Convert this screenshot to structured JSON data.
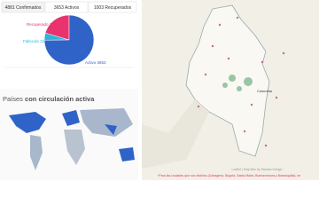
{
  "tabs": [
    "4881 Confirmados",
    "3653 Activos",
    "1003 Recuperados"
  ],
  "pie": {
    "slices": [
      {
        "label": "Recuperado",
        "value": 1003,
        "color": "#e8336f"
      },
      {
        "label": "Fallecido",
        "value": 225,
        "color": "#29b6d8"
      },
      {
        "label": "Activo",
        "value": 3653,
        "color": "#2f63c8"
      }
    ]
  },
  "world": {
    "title_plain": "Países",
    "title_bold": "con circulación activa"
  },
  "map": {
    "country": "Colombia",
    "attribution": "Leaflet | Map tiles by Stamen Design",
    "note": "*Para las ciudades que son distritos (Cartagena, Bogotá, Santa Marta, Buenaventura y Barranquilla), se"
  }
}
